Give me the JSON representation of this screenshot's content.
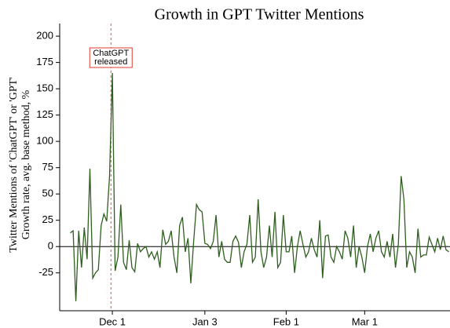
{
  "chart_data": {
    "type": "line",
    "title": "Growth in GPT Twitter Mentions",
    "ylabel": [
      "Twitter Mentions of 'ChatGPT' or 'GPT'",
      "Growth rate, avg. base method, %"
    ],
    "annotation": [
      "ChatGPT",
      "released"
    ],
    "categories": [
      null,
      null,
      null,
      null,
      null,
      null,
      null,
      null,
      null,
      null,
      null,
      null,
      null,
      null,
      null,
      "Dec 1",
      null,
      null,
      null,
      null,
      null,
      null,
      null,
      null,
      null,
      null,
      null,
      null,
      null,
      null,
      null,
      null,
      null,
      null,
      null,
      null,
      null,
      null,
      null,
      null,
      null,
      null,
      null,
      null,
      null,
      null,
      null,
      null,
      "Jan 3",
      null,
      null,
      null,
      null,
      null,
      null,
      null,
      null,
      null,
      null,
      null,
      null,
      null,
      null,
      null,
      null,
      null,
      null,
      null,
      null,
      null,
      null,
      null,
      null,
      null,
      null,
      null,
      null,
      "Feb 1",
      null,
      null,
      null,
      null,
      null,
      null,
      null,
      null,
      null,
      null,
      null,
      null,
      null,
      null,
      null,
      null,
      null,
      null,
      null,
      null,
      null,
      null,
      null,
      null,
      null,
      null,
      null,
      "Mar 1",
      null,
      null,
      null,
      null,
      null,
      null,
      null,
      null,
      null,
      null,
      null,
      null,
      null,
      null,
      null,
      null,
      null,
      null,
      null,
      null,
      null,
      null,
      null,
      null,
      null,
      null,
      null,
      null,
      null,
      null
    ],
    "series": [
      {
        "color": "#2f5f1f",
        "values": [
          13,
          15,
          -52,
          15,
          -20,
          18,
          -12,
          74,
          -30,
          -25,
          -22,
          20,
          31,
          24,
          67,
          165,
          -23,
          -10,
          40,
          -15,
          -22,
          6,
          -20,
          -24,
          3,
          -5,
          -2,
          0,
          -10,
          -5,
          -12,
          -5,
          -20,
          16,
          2,
          5,
          15,
          -10,
          -25,
          20,
          28,
          -5,
          8,
          -35,
          5,
          40,
          35,
          33,
          3,
          2,
          -2,
          5,
          30,
          -10,
          5,
          -12,
          -15,
          -15,
          5,
          10,
          4,
          -20,
          -5,
          2,
          30,
          -15,
          -10,
          45,
          -5,
          -20,
          -10,
          20,
          -10,
          33,
          -20,
          -15,
          30,
          -5,
          -5,
          10,
          -25,
          0,
          15,
          2,
          -10,
          -5,
          8,
          -3,
          -10,
          25,
          -30,
          10,
          11,
          -10,
          -15,
          0,
          -5,
          -12,
          15,
          8,
          -10,
          20,
          -20,
          0,
          -10,
          -25,
          0,
          12,
          -5,
          8,
          15,
          -5,
          -10,
          5,
          -10,
          12,
          -20,
          2,
          67,
          45,
          -20,
          -5,
          -10,
          -25,
          17,
          -10,
          -8,
          -8,
          9,
          2,
          -5,
          8,
          -3,
          10,
          -3,
          -5
        ]
      }
    ],
    "ylim": [
      -61,
      212
    ],
    "yticks": [
      -25,
      0,
      25,
      50,
      75,
      100,
      125,
      150,
      175,
      200
    ],
    "grid": false
  }
}
